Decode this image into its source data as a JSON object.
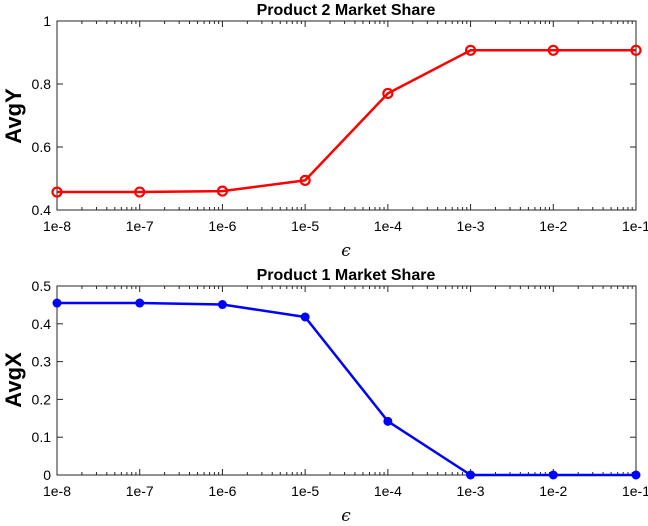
{
  "chart_data": [
    {
      "type": "line",
      "title": "Product 2 Market Share",
      "xlabel": "ϵ",
      "ylabel": "AvgY",
      "xscale": "log",
      "x": [
        1e-08,
        1e-07,
        1e-06,
        1e-05,
        0.0001,
        0.001,
        0.01,
        0.1
      ],
      "xtick_labels": [
        "1e-8",
        "1e-7",
        "1e-6",
        "1e-5",
        "1e-4",
        "1e-3",
        "1e-2",
        "1e-1"
      ],
      "ylim": [
        0.4,
        1
      ],
      "yticks": [
        0.4,
        0.6,
        0.8,
        1
      ],
      "ytick_labels": [
        "0.4",
        "0.6",
        "0.8",
        "1"
      ],
      "grid": false,
      "series": [
        {
          "values": [
            0.457,
            0.457,
            0.46,
            0.494,
            0.77,
            0.907,
            0.907,
            0.907
          ],
          "color": "#ff0000",
          "marker": "open-circle"
        }
      ]
    },
    {
      "type": "line",
      "title": "Product 1 Market Share",
      "xlabel": "ϵ",
      "ylabel": "AvgX",
      "xscale": "log",
      "x": [
        1e-08,
        1e-07,
        1e-06,
        1e-05,
        0.0001,
        0.001,
        0.01,
        0.1
      ],
      "xtick_labels": [
        "1e-8",
        "1e-7",
        "1e-6",
        "1e-5",
        "1e-4",
        "1e-3",
        "1e-2",
        "1e-1"
      ],
      "ylim": [
        0,
        0.5
      ],
      "yticks": [
        0,
        0.1,
        0.2,
        0.3,
        0.4,
        0.5
      ],
      "ytick_labels": [
        "0",
        "0.1",
        "0.2",
        "0.3",
        "0.4",
        "0.5"
      ],
      "grid": false,
      "series": [
        {
          "values": [
            0.455,
            0.455,
            0.451,
            0.418,
            0.142,
            0.0,
            0.0,
            0.0
          ],
          "color": "#0000ff",
          "marker": "filled-circle"
        }
      ]
    }
  ]
}
